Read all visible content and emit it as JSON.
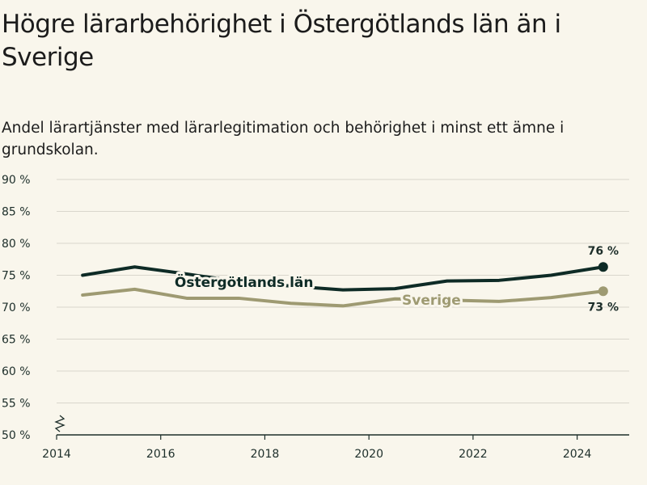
{
  "header": {
    "title": "Högre lärarbehörighet i Östergötlands län än i Sverige",
    "subtitle": "Andel lärartjänster med lärarlegitimation och behörighet i minst ett ämne i grundskolan."
  },
  "chart_data": {
    "type": "line",
    "x": [
      2014.5,
      2015.5,
      2016.5,
      2017.5,
      2018.5,
      2019.5,
      2020.5,
      2021.5,
      2022.5,
      2023.5,
      2024.5
    ],
    "xticks": [
      2014,
      2016,
      2018,
      2020,
      2022,
      2024
    ],
    "xlim": [
      2014,
      2025
    ],
    "yticks": [
      50,
      55,
      60,
      65,
      70,
      75,
      80,
      85,
      90
    ],
    "ytick_suffix": " %",
    "ylim": [
      50,
      90
    ],
    "axis_break": true,
    "grid": true,
    "series": [
      {
        "name": "Östergötlands län",
        "color": "#0e2b26",
        "values": [
          75.0,
          76.3,
          75.2,
          74.0,
          73.3,
          72.7,
          72.9,
          74.1,
          74.2,
          75.0,
          76.3
        ],
        "end_label": "76 %",
        "label_at": 2017.6
      },
      {
        "name": "Sverige",
        "color": "#9e9a72",
        "values": [
          71.9,
          72.8,
          71.4,
          71.4,
          70.6,
          70.2,
          71.3,
          71.1,
          70.9,
          71.5,
          72.5
        ],
        "end_label": "73 %",
        "label_at": 2021.2
      }
    ]
  }
}
